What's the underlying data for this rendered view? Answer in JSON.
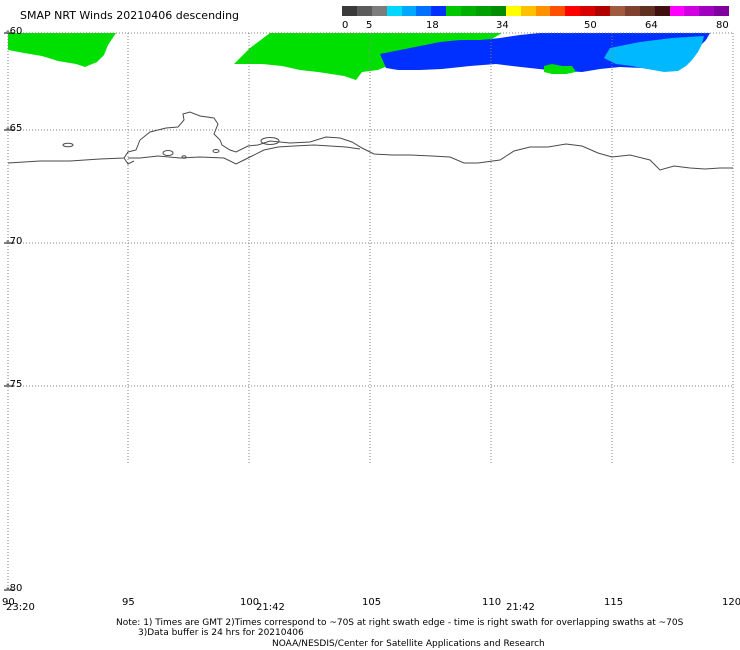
{
  "title": "SMAP NRT Winds  20210406 descending",
  "colorbar": {
    "labels": [
      "0",
      "5",
      "18",
      "34",
      "50",
      "64",
      "80"
    ],
    "segments": [
      "#3a3a3a",
      "#5b5b5b",
      "#7c7c7c",
      "#00d8ff",
      "#00a8ff",
      "#0070ff",
      "#0030ff",
      "#00c800",
      "#00b000",
      "#00a000",
      "#008c00",
      "#ffff00",
      "#ffc000",
      "#ff9000",
      "#ff5000",
      "#ff0000",
      "#d80000",
      "#b00000",
      "#a05a40",
      "#804030",
      "#603020",
      "#401010",
      "#ff00ff",
      "#d000e0",
      "#a000c0",
      "#8000a0"
    ]
  },
  "map": {
    "lat_ticks": [
      "-60",
      "-65",
      "-70",
      "-75",
      "-80"
    ],
    "lon_ticks": [
      "90",
      "95",
      "100",
      "105",
      "110",
      "115",
      "120"
    ],
    "swath_times": [
      "23:20",
      "21:42",
      "21:42"
    ],
    "wind_colors": {
      "green": "#00e000",
      "dark_green": "#00c800",
      "blue": "#0030ff",
      "light_blue": "#00b8ff"
    },
    "coast_color": "#4a4a4a",
    "grid_color": "#808080"
  },
  "notes": {
    "line1": "Note: 1) Times are GMT 2)Times correspond to ~70S at right swath edge - time is right swath for overlapping swaths at ~70S",
    "line2": "3)Data buffer is 24 hrs for 20210406",
    "line3": "NOAA/NESDIS/Center for Satellite Applications and Research"
  }
}
